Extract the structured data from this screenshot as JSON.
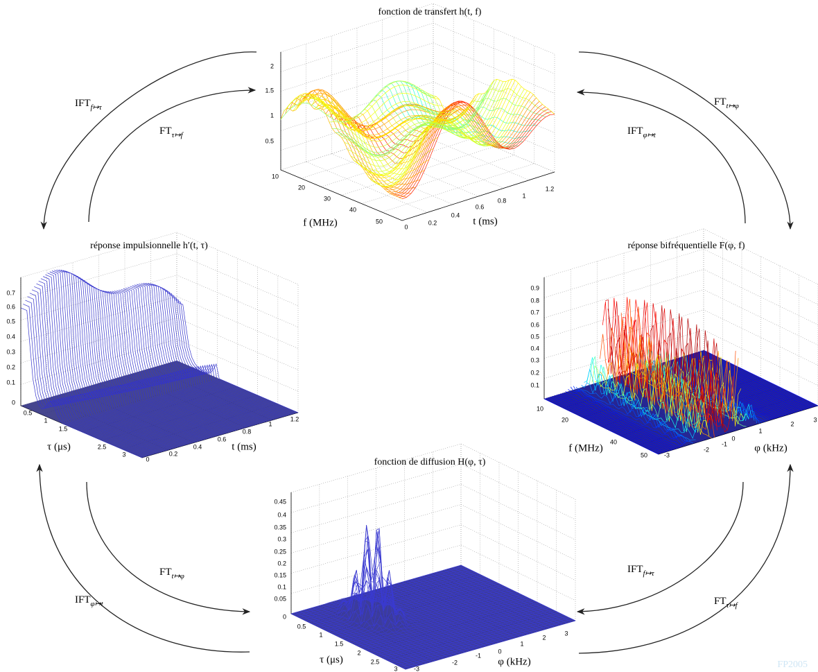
{
  "plots": [
    {
      "title": "fonction de transfert h(t, f)",
      "z_ticks": [
        "0.5",
        "1",
        "1.5",
        "2"
      ],
      "a_label": "f (MHz)",
      "a_ticks": [
        "10",
        "20",
        "30",
        "40",
        "50"
      ],
      "b_label": "t (ms)",
      "b_ticks": [
        "0",
        "0.2",
        "0.4",
        "0.6",
        "0.8",
        "1",
        "1.2"
      ]
    },
    {
      "title": "réponse impulsionnelle h′(t, τ)",
      "z_ticks": [
        "0",
        "0.1",
        "0.2",
        "0.3",
        "0.4",
        "0.5",
        "0.6",
        "0.7"
      ],
      "a_label": "τ (μs)",
      "a_ticks": [
        "0.5",
        "1",
        "1.5",
        "2.5",
        "3"
      ],
      "b_label": "t (ms)",
      "b_ticks": [
        "0",
        "0.2",
        "0.4",
        "0.6",
        "0.8",
        "1",
        "1.2"
      ]
    },
    {
      "title": "réponse bifréquentielle F(φ, f)",
      "z_ticks": [
        "0.1",
        "0.2",
        "0.3",
        "0.4",
        "0.5",
        "0.6",
        "0.7",
        "0.8",
        "0.9"
      ],
      "a_label": "f (MHz)",
      "a_ticks": [
        "10",
        "20",
        "40",
        "50"
      ],
      "b_label": "φ (kHz)",
      "b_ticks": [
        "-3",
        "-2",
        "-1",
        "0",
        "1",
        "2",
        "3"
      ]
    },
    {
      "title": "fonction de diffusion H(φ, τ)",
      "z_ticks": [
        "0",
        "0.05",
        "0.1",
        "0.15",
        "0.2",
        "0.25",
        "0.3",
        "0.35",
        "0.4",
        "0.45"
      ],
      "a_label": "τ (μs)",
      "a_ticks": [
        "0.5",
        "1",
        "1.5",
        "2",
        "2.5",
        "3"
      ],
      "b_label": "φ (kHz)",
      "b_ticks": [
        "-3",
        "-2",
        "-1",
        "0",
        "1",
        "2",
        "3"
      ]
    }
  ],
  "arrows": [
    {
      "main": "IFT",
      "sub": "f↦τ"
    },
    {
      "main": "FT",
      "sub": "τ↦f"
    },
    {
      "main": "FT",
      "sub": "t↦φ"
    },
    {
      "main": "IFT",
      "sub": "φ↦t"
    },
    {
      "main": "FT",
      "sub": "t↦φ"
    },
    {
      "main": "IFT",
      "sub": "φ↦t"
    },
    {
      "main": "IFT",
      "sub": "f↦τ"
    },
    {
      "main": "FT",
      "sub": "τ↦f"
    }
  ],
  "watermark": "FP2005"
}
